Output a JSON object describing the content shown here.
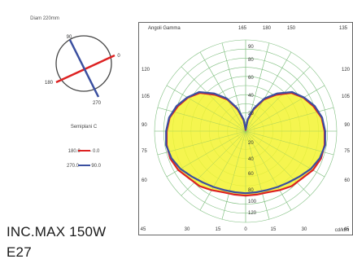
{
  "left_panel": {
    "diagram_label": "Diam 220mm",
    "angle_labels": [
      "90",
      "180",
      "270",
      "0"
    ],
    "semiplane_label": "Semiplani C",
    "legend": [
      {
        "label": "180.0 —— 0.0",
        "color": "#dd2222"
      },
      {
        "label": "270.0 —— 90.0",
        "color": "#3a4fa0"
      }
    ]
  },
  "product": {
    "name": "INC.MAX 150W",
    "base": "E27"
  },
  "chart_data": {
    "type": "polar",
    "title": "Angoli Gamma",
    "unit_label": "cd/klm",
    "angle_tick_labels": {
      "top": [
        "165",
        "180",
        "150",
        "135"
      ],
      "left": [
        "120",
        "105",
        "90",
        "75",
        "60"
      ],
      "right": [
        "120",
        "105",
        "90",
        "75",
        "60"
      ],
      "bottom": [
        "45",
        "30",
        "15",
        "0",
        "15",
        "30",
        "45"
      ]
    },
    "radial_tick_labels": [
      "90",
      "80",
      "60",
      "40",
      "20",
      "20",
      "40",
      "60",
      "80",
      "100",
      "120"
    ],
    "rmax": 150,
    "gamma_angles": [
      0,
      10,
      20,
      30,
      40,
      50,
      60,
      70,
      80,
      90,
      100,
      110,
      120,
      130,
      140,
      150,
      160,
      170,
      180
    ],
    "series": [
      {
        "name": "180.0 —— 0.0",
        "color": "#dd2222",
        "values": [
          106,
          106,
          107,
          112,
          118,
          121,
          128,
          132,
          132,
          130,
          127,
          119,
          110,
          98,
          78,
          60,
          38,
          18,
          2
        ]
      },
      {
        "name": "270.0 —— 90.0",
        "color": "#3a4fa0",
        "values": [
          102,
          102,
          103,
          106,
          110,
          116,
          124,
          130,
          133,
          131,
          128,
          121,
          111,
          100,
          81,
          62,
          40,
          20,
          3
        ]
      }
    ],
    "fill_color": "#f3f330",
    "grid_color": "#7fbf7f"
  }
}
